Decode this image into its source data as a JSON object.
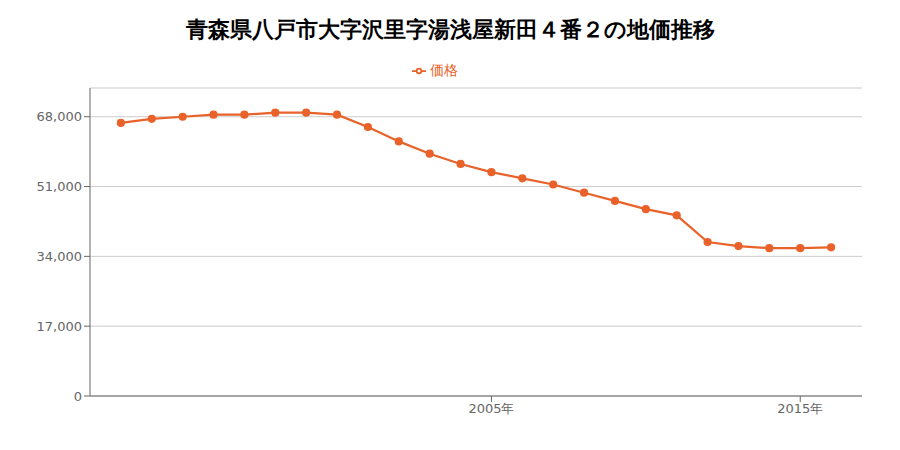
{
  "chart_data": {
    "type": "line",
    "title": "青森県八戸市大字沢里字湯浅屋新田４番２の地価推移",
    "x": [
      1993,
      1994,
      1995,
      1996,
      1997,
      1998,
      1999,
      2000,
      2001,
      2002,
      2003,
      2004,
      2005,
      2006,
      2007,
      2008,
      2009,
      2010,
      2011,
      2012,
      2013,
      2014,
      2015,
      2016
    ],
    "series": [
      {
        "name": "価格",
        "color": "#e8622a",
        "marker": "circle",
        "values": [
          66500,
          67500,
          68000,
          68500,
          68500,
          69000,
          69000,
          68500,
          65500,
          62000,
          59000,
          56500,
          54500,
          53000,
          51500,
          49500,
          47500,
          45500,
          44000,
          37500,
          36500,
          36000,
          36000,
          36200
        ]
      }
    ],
    "xlim": [
      1992,
      2017
    ],
    "xticks": [
      {
        "value": 2005,
        "label": "2005年"
      },
      {
        "value": 2015,
        "label": "2015年"
      }
    ],
    "ylim": [
      0,
      75000
    ],
    "yticks": [
      0,
      {
        "value": 17000,
        "label": "17,000"
      },
      {
        "value": 34000,
        "label": "34,000"
      },
      {
        "value": 51000,
        "label": "51,000"
      },
      {
        "value": 68000,
        "label": "68,000"
      }
    ],
    "grid": "y",
    "legend": "top"
  }
}
